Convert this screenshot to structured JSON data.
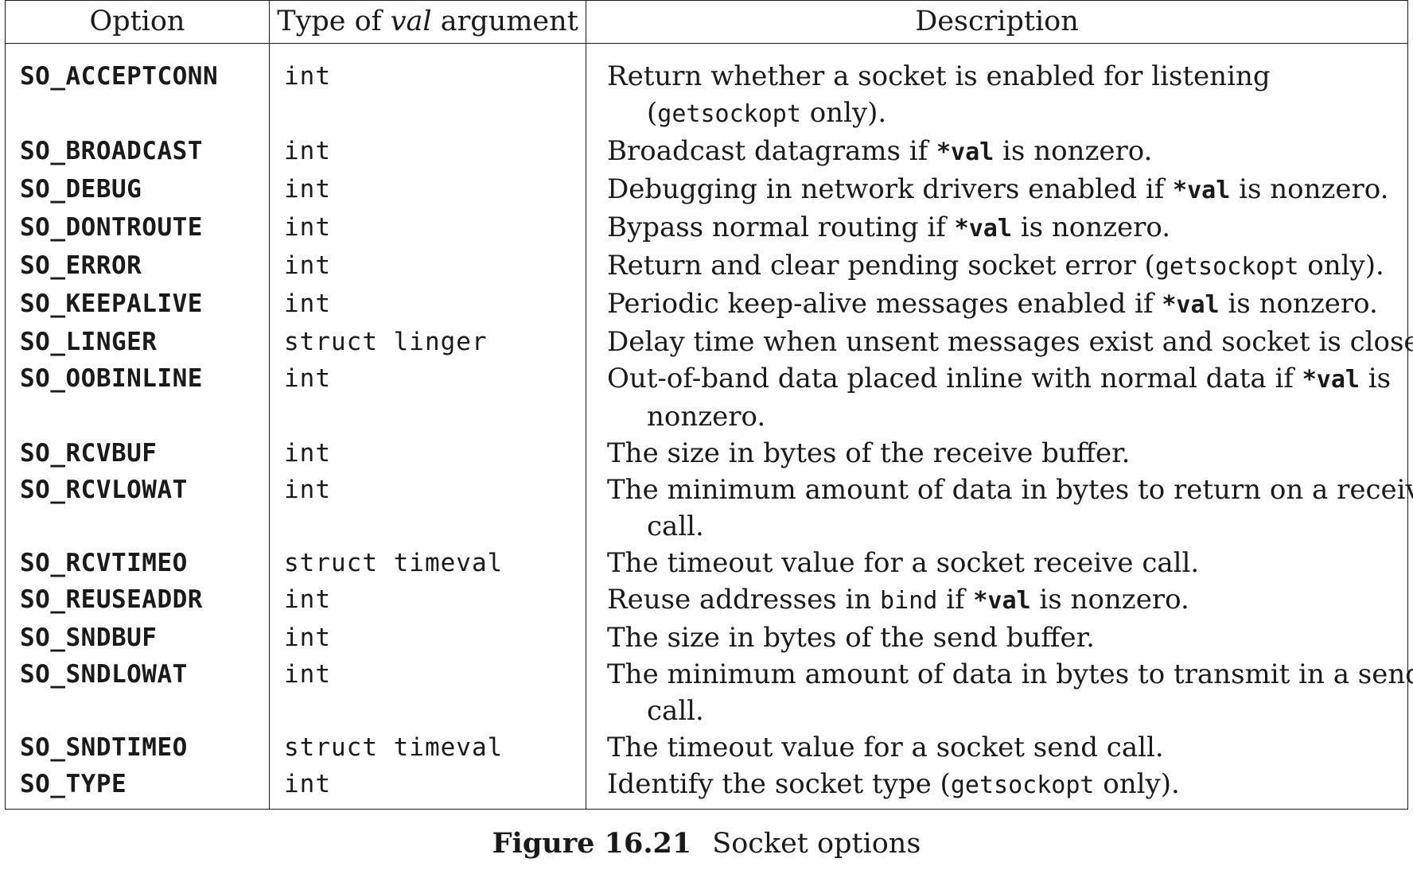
{
  "table": {
    "headers": {
      "option": "Option",
      "type_prefix": "Type of ",
      "type_italic": "val",
      "type_suffix": " argument",
      "description": "Description"
    },
    "rows": [
      {
        "option": "SO_ACCEPTCONN",
        "type": "int",
        "desc": [
          [
            {
              "t": "Return whether a socket is enabled for listening"
            }
          ],
          [
            {
              "t": "("
            },
            {
              "c": "getsockopt"
            },
            {
              "t": " only)."
            }
          ]
        ]
      },
      {
        "option": "SO_BROADCAST",
        "type": "int",
        "desc": [
          [
            {
              "t": "Broadcast datagrams if "
            },
            {
              "b": "*val"
            },
            {
              "t": " is nonzero."
            }
          ]
        ]
      },
      {
        "option": "SO_DEBUG",
        "type": "int",
        "desc": [
          [
            {
              "t": "Debugging in network drivers enabled if "
            },
            {
              "b": "*val"
            },
            {
              "t": " is nonzero."
            }
          ]
        ]
      },
      {
        "option": "SO_DONTROUTE",
        "type": "int",
        "desc": [
          [
            {
              "t": "Bypass normal routing if "
            },
            {
              "b": "*val"
            },
            {
              "t": " is nonzero."
            }
          ]
        ]
      },
      {
        "option": "SO_ERROR",
        "type": "int",
        "desc": [
          [
            {
              "t": "Return and clear pending socket error ("
            },
            {
              "c": "getsockopt"
            },
            {
              "t": " only)."
            }
          ]
        ]
      },
      {
        "option": "SO_KEEPALIVE",
        "type": "int",
        "desc": [
          [
            {
              "t": "Periodic keep-alive messages enabled if "
            },
            {
              "b": "*val"
            },
            {
              "t": " is nonzero."
            }
          ]
        ]
      },
      {
        "option": "SO_LINGER",
        "type": "struct linger",
        "desc": [
          [
            {
              "t": "Delay time when unsent messages exist and socket is closed."
            }
          ]
        ]
      },
      {
        "option": "SO_OOBINLINE",
        "type": "int",
        "desc": [
          [
            {
              "t": "Out-of-band data placed inline with normal data if "
            },
            {
              "b": "*val"
            },
            {
              "t": " is"
            }
          ],
          [
            {
              "t": "nonzero."
            }
          ]
        ]
      },
      {
        "option": "SO_RCVBUF",
        "type": "int",
        "desc": [
          [
            {
              "t": "The size in bytes of the receive buffer."
            }
          ]
        ]
      },
      {
        "option": "SO_RCVLOWAT",
        "type": "int",
        "desc": [
          [
            {
              "t": "The minimum amount of data in bytes to return on a receive"
            }
          ],
          [
            {
              "t": "call."
            }
          ]
        ]
      },
      {
        "option": "SO_RCVTIMEO",
        "type": "struct timeval",
        "desc": [
          [
            {
              "t": "The timeout value for a socket receive call."
            }
          ]
        ]
      },
      {
        "option": "SO_REUSEADDR",
        "type": "int",
        "desc": [
          [
            {
              "t": "Reuse addresses in "
            },
            {
              "c": "bind"
            },
            {
              "t": " if "
            },
            {
              "b": "*val"
            },
            {
              "t": " is nonzero."
            }
          ]
        ]
      },
      {
        "option": "SO_SNDBUF",
        "type": "int",
        "desc": [
          [
            {
              "t": "The size in bytes of the send buffer."
            }
          ]
        ]
      },
      {
        "option": "SO_SNDLOWAT",
        "type": "int",
        "desc": [
          [
            {
              "t": "The minimum amount of data in bytes to transmit in a send"
            }
          ],
          [
            {
              "t": "call."
            }
          ]
        ]
      },
      {
        "option": "SO_SNDTIMEO",
        "type": "struct timeval",
        "desc": [
          [
            {
              "t": "The timeout value for a socket send call."
            }
          ]
        ]
      },
      {
        "option": "SO_TYPE",
        "type": "int",
        "desc": [
          [
            {
              "t": "Identify the socket type ("
            },
            {
              "c": "getsockopt"
            },
            {
              "t": " only)."
            }
          ]
        ]
      }
    ]
  },
  "caption": {
    "figure": "Figure 16.21",
    "title": "Socket options"
  }
}
